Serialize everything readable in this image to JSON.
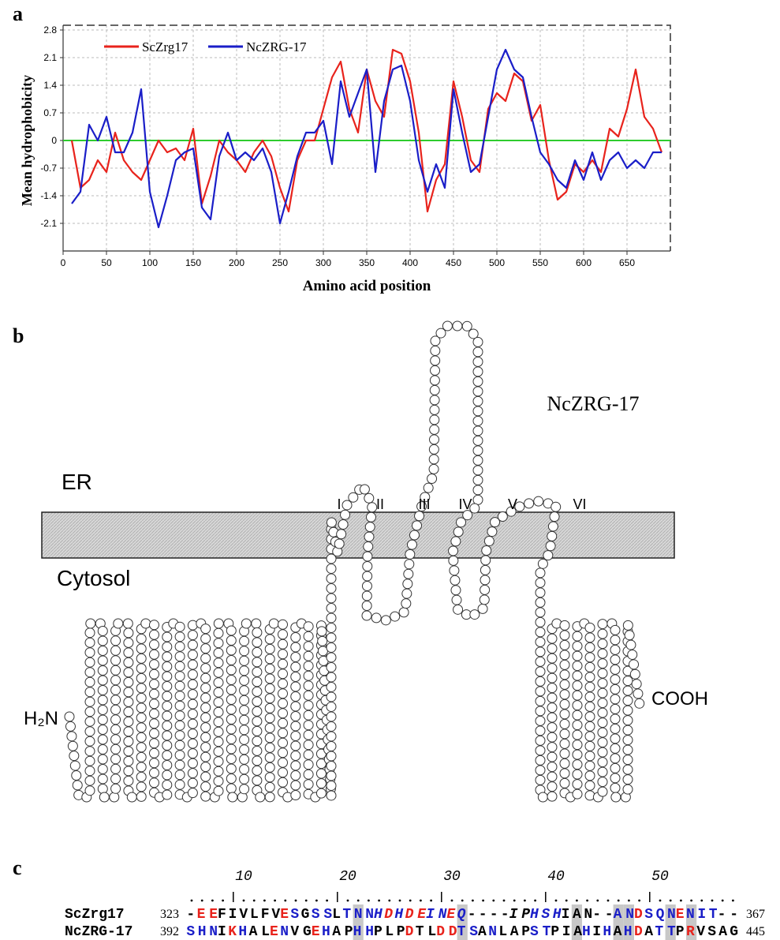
{
  "chart_data": {
    "type": "line",
    "panel_label": "a",
    "ylabel": "Mean hydrophobicity",
    "xlabel": "Amino acid position",
    "xlim": [
      0,
      700
    ],
    "xticks": [
      0,
      50,
      100,
      150,
      200,
      250,
      300,
      350,
      400,
      450,
      500,
      550,
      600,
      650
    ],
    "ylim": [
      -2.8,
      2.8
    ],
    "yticks": [
      2.8,
      2.1,
      1.4,
      0.7,
      0,
      -0.7,
      -1.4,
      -2.1
    ],
    "grid": true,
    "legend": "top-left",
    "x": [
      10,
      20,
      30,
      40,
      50,
      60,
      70,
      80,
      90,
      100,
      110,
      120,
      130,
      140,
      150,
      160,
      170,
      180,
      190,
      200,
      210,
      220,
      230,
      240,
      250,
      260,
      270,
      280,
      290,
      300,
      310,
      320,
      330,
      340,
      350,
      360,
      370,
      380,
      390,
      400,
      410,
      420,
      430,
      440,
      450,
      460,
      470,
      480,
      490,
      500,
      510,
      520,
      530,
      540,
      550,
      560,
      570,
      580,
      590,
      600,
      610,
      620,
      630,
      640,
      650,
      660,
      670,
      680,
      690
    ],
    "series": [
      {
        "name": "ScZrg17",
        "color": "#e8231c",
        "values": [
          0,
          -1.2,
          -1.0,
          -0.5,
          -0.8,
          0.2,
          -0.5,
          -0.8,
          -1.0,
          -0.5,
          0.0,
          -0.3,
          -0.2,
          -0.5,
          0.3,
          -1.6,
          -0.9,
          0.0,
          -0.3,
          -0.5,
          -0.8,
          -0.3,
          0.0,
          -0.4,
          -1.2,
          -1.8,
          -0.5,
          0.0,
          0.0,
          0.8,
          1.6,
          2.0,
          0.8,
          0.2,
          1.8,
          1.0,
          0.6,
          2.3,
          2.2,
          1.5,
          0.2,
          -1.8,
          -1.0,
          -0.6,
          1.5,
          0.6,
          -0.5,
          -0.8,
          0.8,
          1.2,
          1.0,
          1.7,
          1.5,
          0.5,
          0.9,
          -0.5,
          -1.5,
          -1.3,
          -0.6,
          -0.8,
          -0.5,
          -0.8,
          0.3,
          0.1,
          0.8,
          1.8,
          0.6,
          0.3,
          -0.3
        ]
      },
      {
        "name": "NcZRG-17",
        "color": "#1a1ec8",
        "values": [
          -1.6,
          -1.3,
          0.4,
          0.0,
          0.6,
          -0.3,
          -0.3,
          0.2,
          1.3,
          -1.3,
          -2.2,
          -1.4,
          -0.5,
          -0.3,
          -0.2,
          -1.7,
          -2.0,
          -0.4,
          0.2,
          -0.5,
          -0.3,
          -0.5,
          -0.2,
          -0.8,
          -2.1,
          -1.3,
          -0.4,
          0.2,
          0.2,
          0.5,
          -0.6,
          1.5,
          0.6,
          1.2,
          1.8,
          -0.8,
          1.0,
          1.8,
          1.9,
          1.0,
          -0.5,
          -1.3,
          -0.6,
          -1.2,
          1.3,
          0.2,
          -0.8,
          -0.6,
          0.6,
          1.8,
          2.3,
          1.8,
          1.6,
          0.6,
          -0.3,
          -0.6,
          -1.0,
          -1.2,
          -0.5,
          -1.0,
          -0.3,
          -1.0,
          -0.5,
          -0.3,
          -0.7,
          -0.5,
          -0.7,
          -0.3,
          -0.3
        ]
      }
    ]
  },
  "panel_b": {
    "panel_label": "b",
    "title": "NcZRG-17",
    "compartments": [
      "ER",
      "Cytosol"
    ],
    "n_term": "H₂N",
    "c_term": "COOH",
    "helices": [
      "I",
      "II",
      "III",
      "IV",
      "V",
      "VI"
    ]
  },
  "panel_c": {
    "panel_label": "c",
    "ruler_ticks": [
      10,
      20,
      30,
      40,
      50
    ],
    "rows": [
      {
        "name": "ScZrg17",
        "start": 323,
        "end": 367,
        "segments": [
          {
            "text": "-",
            "color": "#000"
          },
          {
            "text": "EE",
            "color": "#e8231c"
          },
          {
            "text": "FIVLFV",
            "color": "#000"
          },
          {
            "text": "E",
            "color": "#e8231c"
          },
          {
            "text": "S",
            "color": "#1a1ec8"
          },
          {
            "text": "G",
            "color": "#000"
          },
          {
            "text": "SS",
            "color": "#1a1ec8"
          },
          {
            "text": "L",
            "color": "#000"
          },
          {
            "text": "TNN",
            "color": "#1a1ec8"
          },
          {
            "text": "H",
            "color": "#1a1ec8",
            "italic": true
          },
          {
            "text": "D",
            "color": "#e8231c",
            "italic": true
          },
          {
            "text": "H",
            "color": "#1a1ec8",
            "italic": true
          },
          {
            "text": "DE",
            "color": "#e8231c",
            "italic": true
          },
          {
            "text": "IN",
            "color": "#1a1ec8",
            "italic": true
          },
          {
            "text": "E",
            "color": "#e8231c",
            "italic": true
          },
          {
            "text": "Q",
            "color": "#1a1ec8",
            "italic": true
          },
          {
            "text": "----",
            "color": "#000"
          },
          {
            "text": "IP",
            "color": "#000",
            "italic": true
          },
          {
            "text": "HSH",
            "color": "#1a1ec8",
            "italic": true
          },
          {
            "text": "IAN",
            "color": "#000"
          },
          {
            "text": "--",
            "color": "#000"
          },
          {
            "text": "AN",
            "color": "#1a1ec8"
          },
          {
            "text": "D",
            "color": "#e8231c"
          },
          {
            "text": "SQN",
            "color": "#1a1ec8"
          },
          {
            "text": "E",
            "color": "#e8231c"
          },
          {
            "text": "NIT",
            "color": "#1a1ec8"
          },
          {
            "text": "--",
            "color": "#000"
          }
        ]
      },
      {
        "name": "NcZRG-17",
        "start": 392,
        "end": 445,
        "segments": [
          {
            "text": "SHN",
            "color": "#1a1ec8"
          },
          {
            "text": "I",
            "color": "#000"
          },
          {
            "text": "K",
            "color": "#e8231c"
          },
          {
            "text": "H",
            "color": "#1a1ec8"
          },
          {
            "text": "AL",
            "color": "#000"
          },
          {
            "text": "E",
            "color": "#e8231c"
          },
          {
            "text": "N",
            "color": "#1a1ec8"
          },
          {
            "text": "VG",
            "color": "#000"
          },
          {
            "text": "E",
            "color": "#e8231c"
          },
          {
            "text": "H",
            "color": "#1a1ec8"
          },
          {
            "text": "AP",
            "color": "#000"
          },
          {
            "text": "HH",
            "color": "#1a1ec8"
          },
          {
            "text": "PLP",
            "color": "#000"
          },
          {
            "text": "D",
            "color": "#e8231c"
          },
          {
            "text": "TL",
            "color": "#000"
          },
          {
            "text": "DD",
            "color": "#e8231c"
          },
          {
            "text": "TS",
            "color": "#1a1ec8"
          },
          {
            "text": "A",
            "color": "#000"
          },
          {
            "text": "N",
            "color": "#1a1ec8"
          },
          {
            "text": "LAP",
            "color": "#000"
          },
          {
            "text": "ST",
            "color": "#1a1ec8"
          },
          {
            "text": "PIA",
            "color": "#000"
          },
          {
            "text": "H",
            "color": "#1a1ec8"
          },
          {
            "text": "I",
            "color": "#000"
          },
          {
            "text": "H",
            "color": "#1a1ec8"
          },
          {
            "text": "A",
            "color": "#000"
          },
          {
            "text": "H",
            "color": "#1a1ec8"
          },
          {
            "text": "D",
            "color": "#e8231c"
          },
          {
            "text": "A",
            "color": "#000"
          },
          {
            "text": "TT",
            "color": "#1a1ec8"
          },
          {
            "text": "P",
            "color": "#000"
          },
          {
            "text": "R",
            "color": "#e8231c"
          },
          {
            "text": "VSAG",
            "color": "#000"
          }
        ]
      }
    ]
  }
}
